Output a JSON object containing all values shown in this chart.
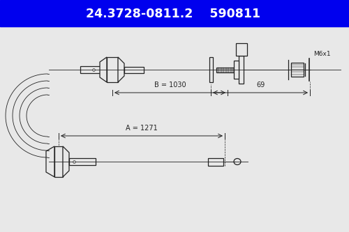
{
  "title1": "24.3728-0811.2",
  "title2": "590811",
  "header_bg": "#0000ee",
  "header_text_color": "#ffffff",
  "bg_color": "#e8e8e8",
  "drawing_bg": "#e8e8e8",
  "line_color": "#222222",
  "dim_color": "#222222",
  "label_B": "B = 1030",
  "label_A": "A = 1271",
  "label_69": "69",
  "label_M6x1": "M6x1"
}
